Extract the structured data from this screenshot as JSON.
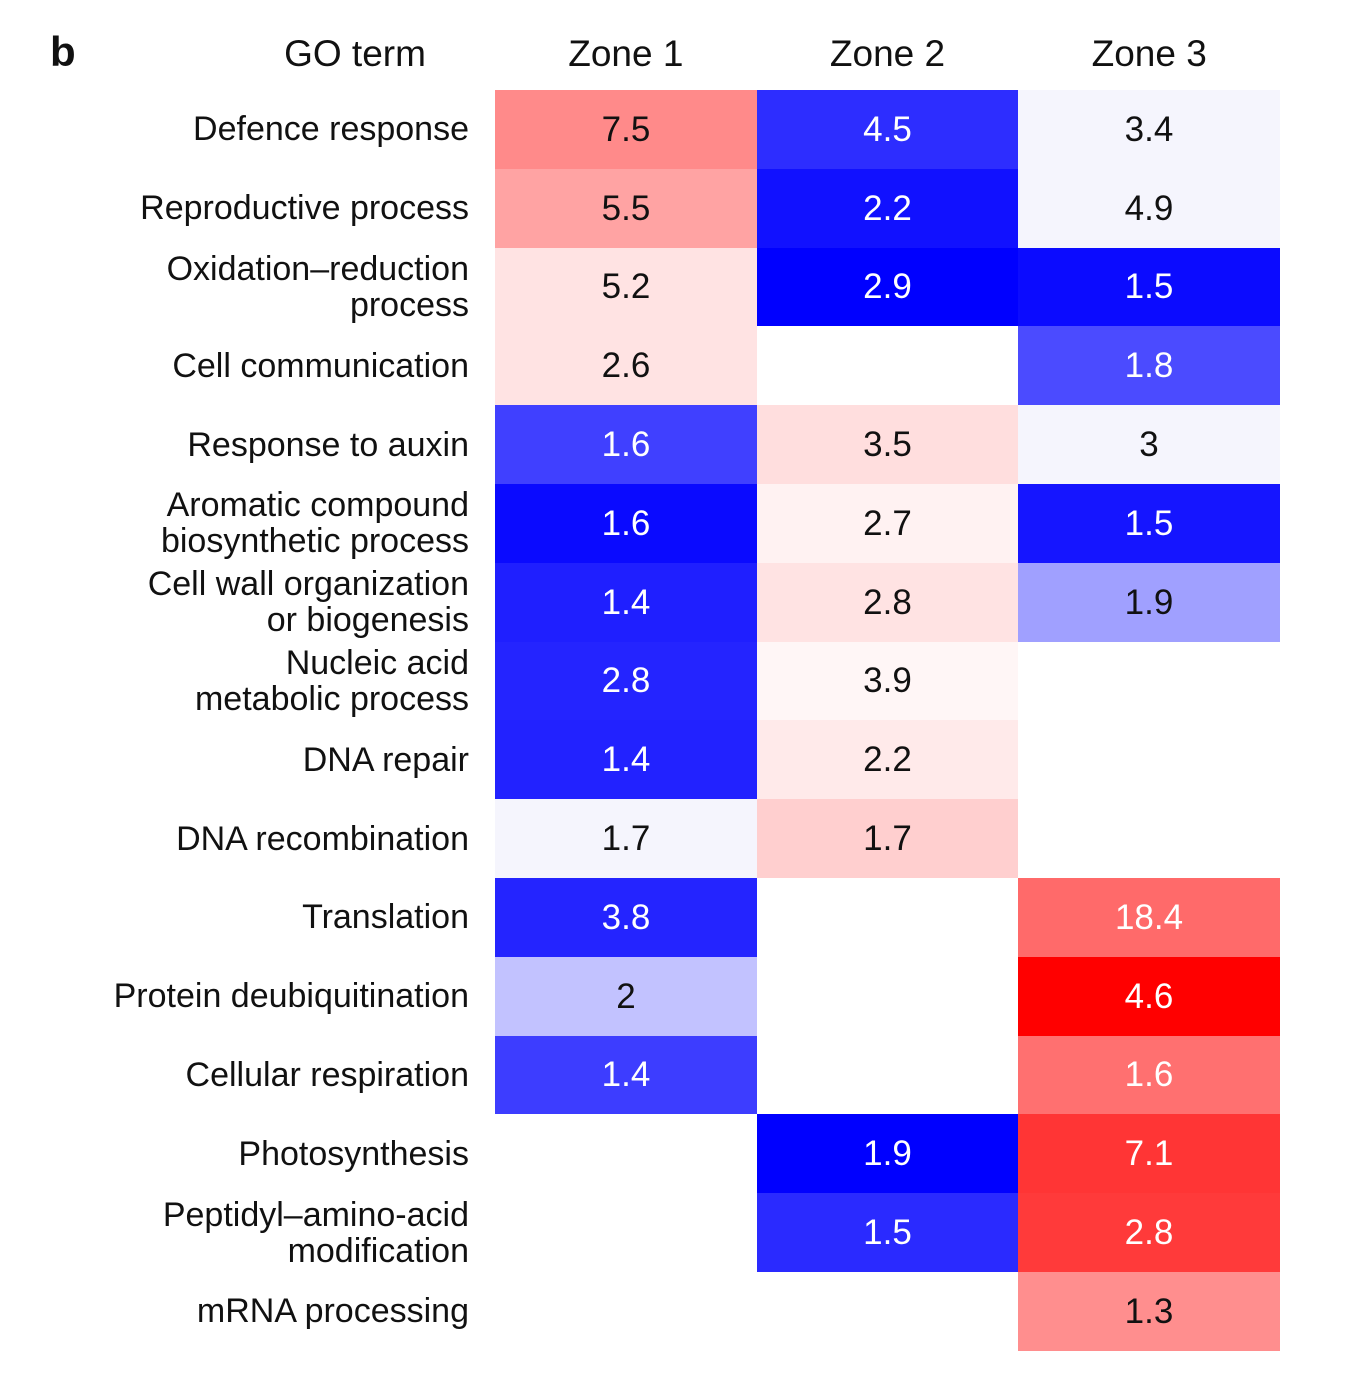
{
  "panel_label": "b",
  "chart_data": {
    "type": "heatmap",
    "title": "",
    "row_header": "GO term",
    "columns": [
      "Zone 1",
      "Zone 2",
      "Zone 3"
    ],
    "rows": [
      [
        "Defence response"
      ],
      [
        "Reproductive process"
      ],
      [
        "Oxidation–reduction",
        "process"
      ],
      [
        "Cell communication"
      ],
      [
        "Response to auxin"
      ],
      [
        "Aromatic compound",
        "biosynthetic process"
      ],
      [
        "Cell wall organization",
        "or biogenesis"
      ],
      [
        "Nucleic acid",
        "metabolic process"
      ],
      [
        "DNA repair"
      ],
      [
        "DNA recombination"
      ],
      [
        "Translation"
      ],
      [
        "Protein deubiquitination"
      ],
      [
        "Cellular respiration"
      ],
      [
        "Photosynthesis"
      ],
      [
        "Peptidyl–amino-acid",
        "modification"
      ],
      [
        "mRNA processing"
      ]
    ],
    "values": [
      [
        "7.5",
        "4.5",
        "3.4"
      ],
      [
        "5.5",
        "2.2",
        "4.9"
      ],
      [
        "5.2",
        "2.9",
        "1.5"
      ],
      [
        "2.6",
        null,
        "1.8"
      ],
      [
        "1.6",
        "3.5",
        "3"
      ],
      [
        "1.6",
        "2.7",
        "1.5"
      ],
      [
        "1.4",
        "2.8",
        "1.9"
      ],
      [
        "2.8",
        "3.9",
        null
      ],
      [
        "1.4",
        "2.2",
        null
      ],
      [
        "1.7",
        "1.7",
        null
      ],
      [
        "3.8",
        null,
        "18.4"
      ],
      [
        "2",
        null,
        "4.6"
      ],
      [
        "1.4",
        null,
        "1.6"
      ],
      [
        null,
        "1.9",
        "7.1"
      ],
      [
        null,
        "1.5",
        "2.8"
      ],
      [
        null,
        null,
        "1.3"
      ]
    ],
    "cell_colors": [
      [
        "#ff8a8a",
        "#2d2dff",
        "#f5f5fd"
      ],
      [
        "#ffa3a3",
        "#1111ff",
        "#f5f5fd"
      ],
      [
        "#ffe3e3",
        "#0000ff",
        "#0b0bff"
      ],
      [
        "#ffe3e3",
        null,
        "#4b4bff"
      ],
      [
        "#4040ff",
        "#ffdede",
        "#f5f5fd"
      ],
      [
        "#0a0aff",
        "#fff2f2",
        "#1515ff"
      ],
      [
        "#1f1fff",
        "#ffe3e3",
        "#a0a0ff"
      ],
      [
        "#2424ff",
        "#fff6f6",
        null
      ],
      [
        "#2222ff",
        "#ffeaea",
        null
      ],
      [
        "#f5f5fd",
        "#ffcfcf",
        null
      ],
      [
        "#2424ff",
        null,
        "#ff6a6a"
      ],
      [
        "#c2c2ff",
        null,
        "#ff0000"
      ],
      [
        "#3d3dff",
        null,
        "#ff7070"
      ],
      [
        null,
        "#0000ff",
        "#ff3535"
      ],
      [
        null,
        "#2a2aff",
        "#ff3a3a"
      ],
      [
        null,
        null,
        "#ff8e8e"
      ]
    ],
    "text_colors": [
      [
        "#111111",
        "#ffffff",
        "#111111"
      ],
      [
        "#111111",
        "#ffffff",
        "#111111"
      ],
      [
        "#111111",
        "#ffffff",
        "#ffffff"
      ],
      [
        "#111111",
        null,
        "#ffffff"
      ],
      [
        "#ffffff",
        "#111111",
        "#111111"
      ],
      [
        "#ffffff",
        "#111111",
        "#ffffff"
      ],
      [
        "#ffffff",
        "#111111",
        "#111111"
      ],
      [
        "#ffffff",
        "#111111",
        null
      ],
      [
        "#ffffff",
        "#111111",
        null
      ],
      [
        "#111111",
        "#111111",
        null
      ],
      [
        "#ffffff",
        null,
        "#ffffff"
      ],
      [
        "#111111",
        null,
        "#ffffff"
      ],
      [
        "#ffffff",
        null,
        "#ffffff"
      ],
      [
        null,
        "#ffffff",
        "#ffffff"
      ],
      [
        null,
        "#ffffff",
        "#ffffff"
      ],
      [
        null,
        null,
        "#111111"
      ]
    ]
  }
}
